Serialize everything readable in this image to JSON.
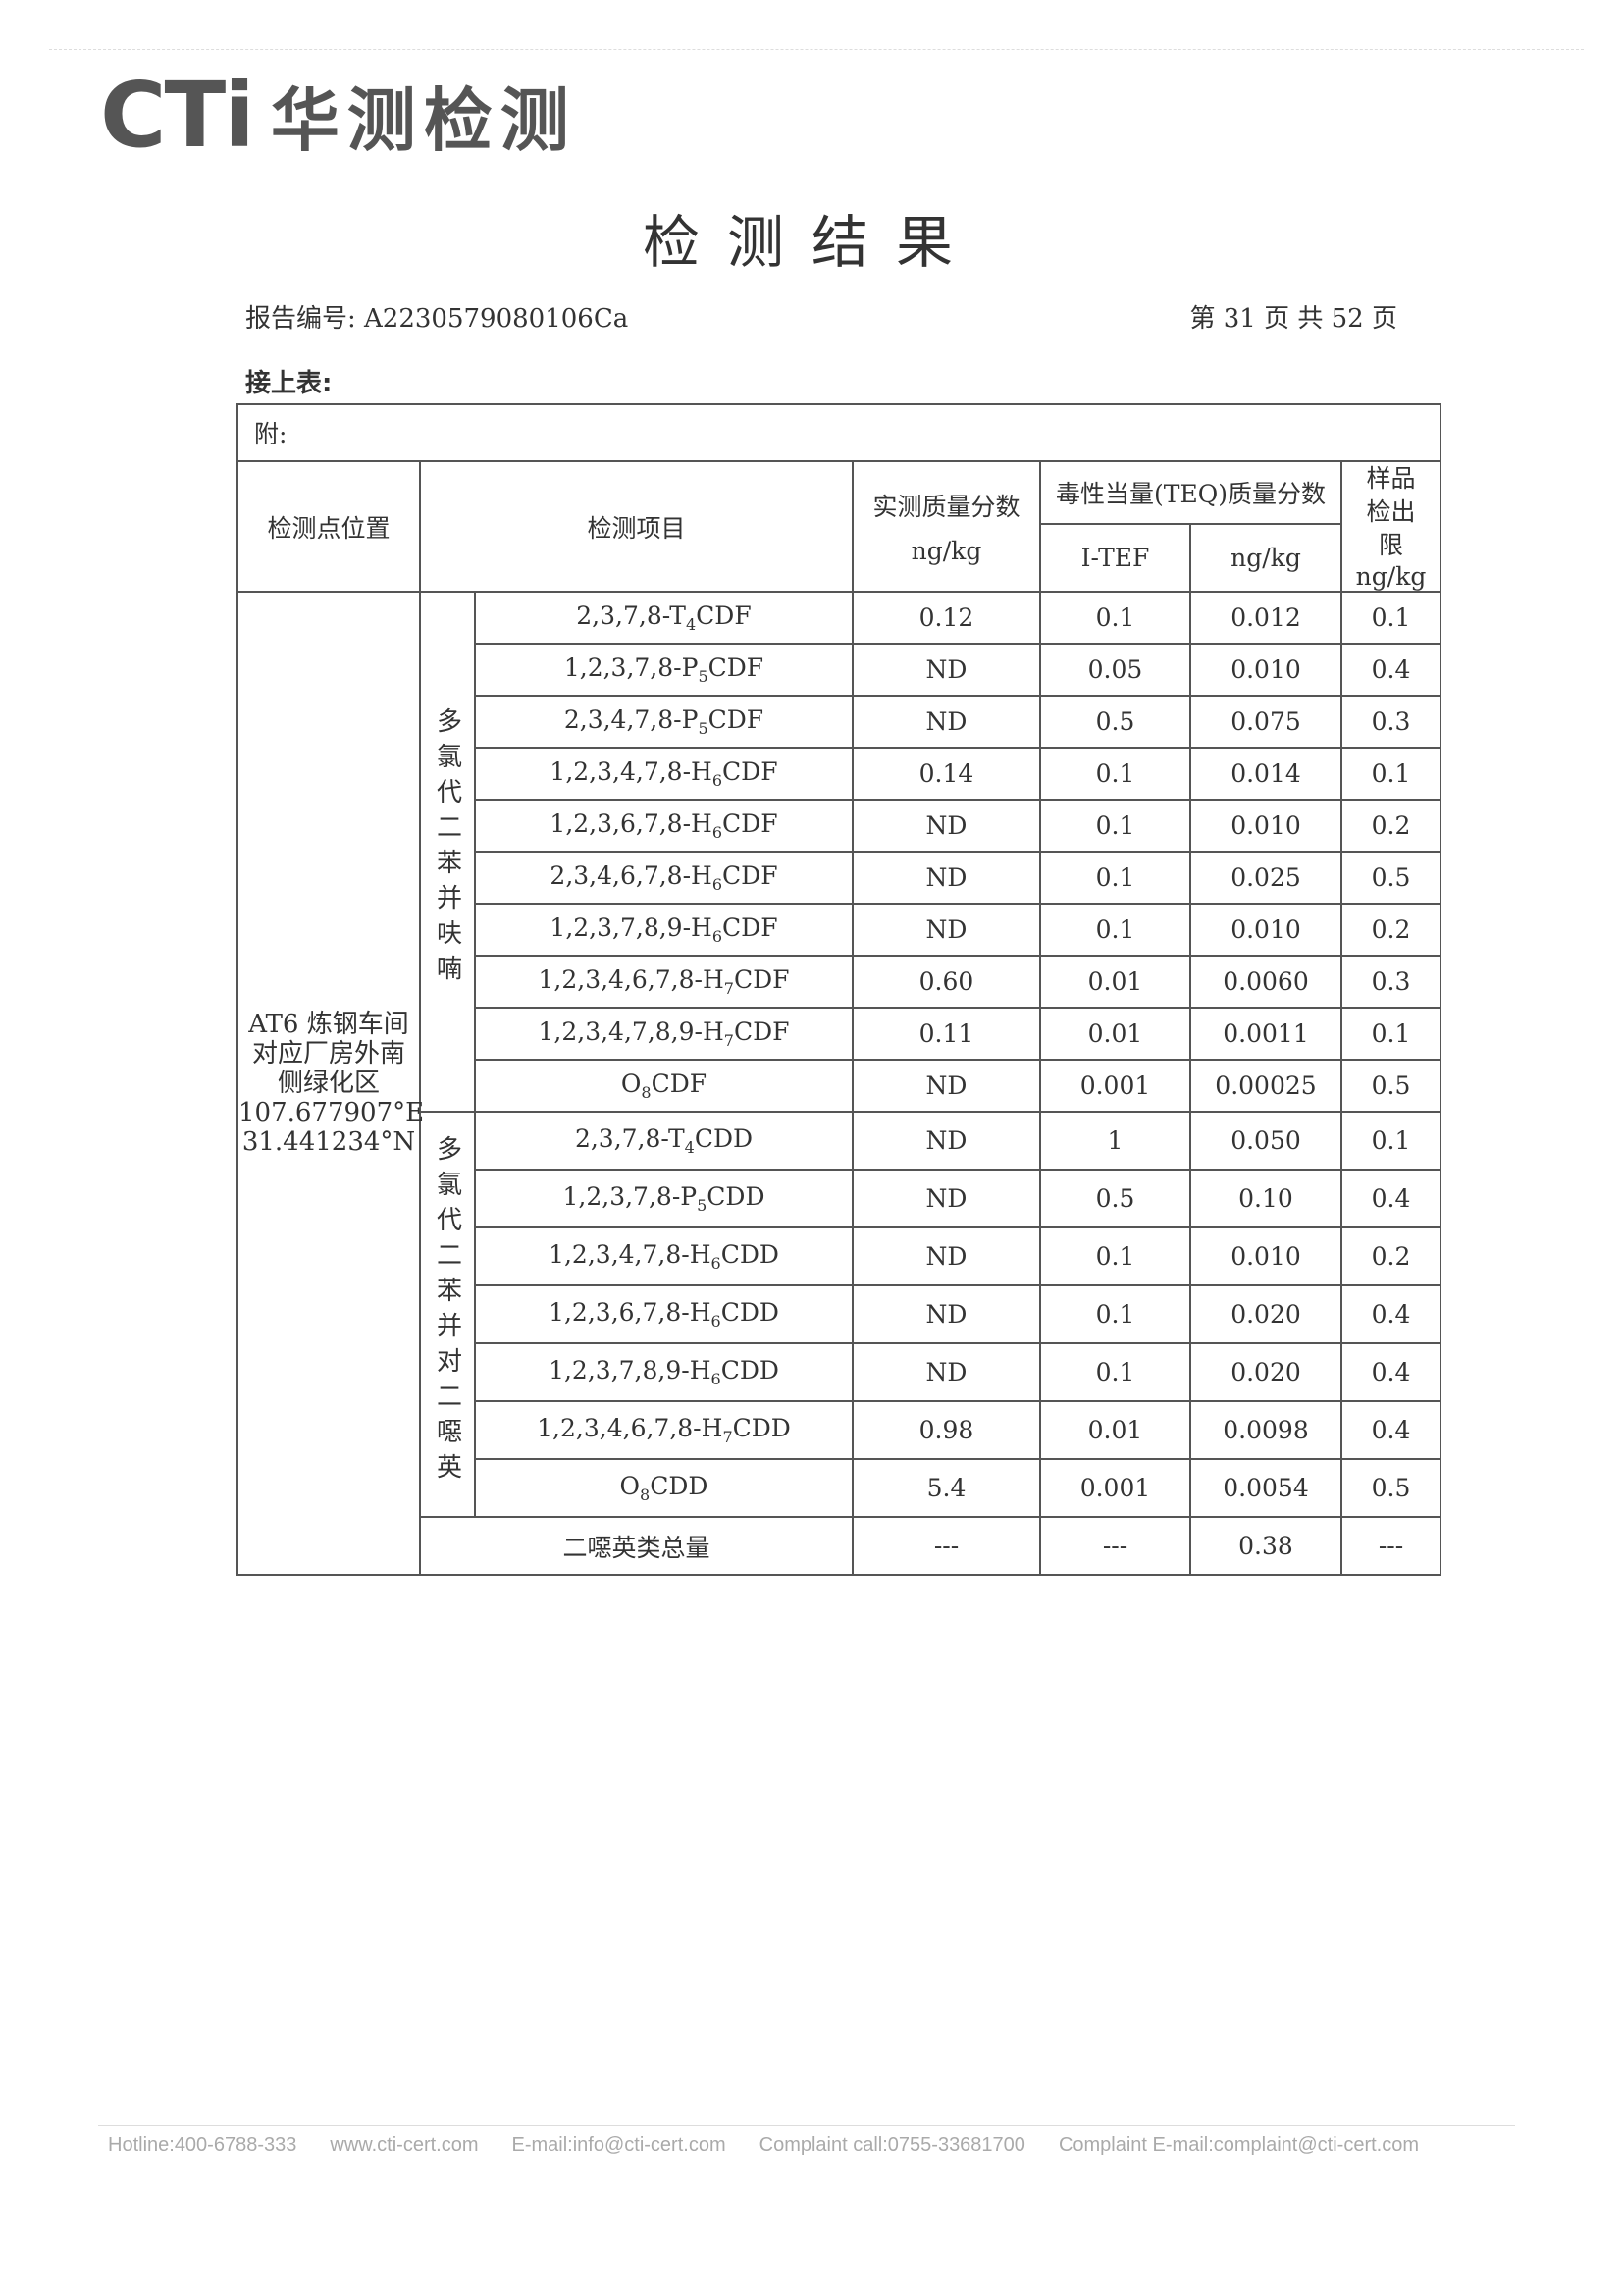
{
  "header": {
    "logo_text": "CTi 华测检测",
    "title": "检测结果",
    "report_no": "报告编号: A2230579080106Ca",
    "page_info": "第 31 页  共 52 页",
    "continued": "接上表:"
  },
  "table": {
    "note": "附:",
    "headers": {
      "location": "检测点位置",
      "item": "检测项目",
      "measured": "实测质量分数",
      "measured_unit": "ng/kg",
      "teq": "毒性当量(TEQ)质量分数",
      "itef": "I-TEF",
      "teq_unit": "ng/kg",
      "limit": "样品检出限",
      "limit_unit": "ng/kg"
    },
    "location": {
      "line1": "AT6 炼钢车间",
      "line2": "对应厂房外南",
      "line3": "侧绿化区",
      "lon": "107.677907°E",
      "lat": "31.441234°N"
    },
    "group_pcdf": "多氯代二苯并呋喃",
    "group_pcdd": "多氯代二苯并对二噁英",
    "pcdf_rows": [
      {
        "pre": "2,3,7,8-T",
        "sub": "4",
        "post": "CDF",
        "measured": "0.12",
        "itef": "0.1",
        "teq": "0.012",
        "limit": "0.1"
      },
      {
        "pre": "1,2,3,7,8-P",
        "sub": "5",
        "post": "CDF",
        "measured": "ND",
        "itef": "0.05",
        "teq": "0.010",
        "limit": "0.4"
      },
      {
        "pre": "2,3,4,7,8-P",
        "sub": "5",
        "post": "CDF",
        "measured": "ND",
        "itef": "0.5",
        "teq": "0.075",
        "limit": "0.3"
      },
      {
        "pre": "1,2,3,4,7,8-H",
        "sub": "6",
        "post": "CDF",
        "measured": "0.14",
        "itef": "0.1",
        "teq": "0.014",
        "limit": "0.1"
      },
      {
        "pre": "1,2,3,6,7,8-H",
        "sub": "6",
        "post": "CDF",
        "measured": "ND",
        "itef": "0.1",
        "teq": "0.010",
        "limit": "0.2"
      },
      {
        "pre": "2,3,4,6,7,8-H",
        "sub": "6",
        "post": "CDF",
        "measured": "ND",
        "itef": "0.1",
        "teq": "0.025",
        "limit": "0.5"
      },
      {
        "pre": "1,2,3,7,8,9-H",
        "sub": "6",
        "post": "CDF",
        "measured": "ND",
        "itef": "0.1",
        "teq": "0.010",
        "limit": "0.2"
      },
      {
        "pre": "1,2,3,4,6,7,8-H",
        "sub": "7",
        "post": "CDF",
        "measured": "0.60",
        "itef": "0.01",
        "teq": "0.0060",
        "limit": "0.3"
      },
      {
        "pre": "1,2,3,4,7,8,9-H",
        "sub": "7",
        "post": "CDF",
        "measured": "0.11",
        "itef": "0.01",
        "teq": "0.0011",
        "limit": "0.1"
      },
      {
        "pre": "O",
        "sub": "8",
        "post": "CDF",
        "measured": "ND",
        "itef": "0.001",
        "teq": "0.00025",
        "limit": "0.5"
      }
    ],
    "pcdd_rows": [
      {
        "pre": "2,3,7,8-T",
        "sub": "4",
        "post": "CDD",
        "measured": "ND",
        "itef": "1",
        "teq": "0.050",
        "limit": "0.1"
      },
      {
        "pre": "1,2,3,7,8-P",
        "sub": "5",
        "post": "CDD",
        "measured": "ND",
        "itef": "0.5",
        "teq": "0.10",
        "limit": "0.4"
      },
      {
        "pre": "1,2,3,4,7,8-H",
        "sub": "6",
        "post": "CDD",
        "measured": "ND",
        "itef": "0.1",
        "teq": "0.010",
        "limit": "0.2"
      },
      {
        "pre": "1,2,3,6,7,8-H",
        "sub": "6",
        "post": "CDD",
        "measured": "ND",
        "itef": "0.1",
        "teq": "0.020",
        "limit": "0.4"
      },
      {
        "pre": "1,2,3,7,8,9-H",
        "sub": "6",
        "post": "CDD",
        "measured": "ND",
        "itef": "0.1",
        "teq": "0.020",
        "limit": "0.4"
      },
      {
        "pre": "1,2,3,4,6,7,8-H",
        "sub": "7",
        "post": "CDD",
        "measured": "0.98",
        "itef": "0.01",
        "teq": "0.0098",
        "limit": "0.4"
      },
      {
        "pre": "O",
        "sub": "8",
        "post": "CDD",
        "measured": "5.4",
        "itef": "0.001",
        "teq": "0.0054",
        "limit": "0.5"
      }
    ],
    "total": {
      "label": "二噁英类总量",
      "measured": "---",
      "itef": "---",
      "teq": "0.38",
      "limit": "---"
    }
  },
  "footer": {
    "hotline": "Hotline:400-6788-333",
    "website": "www.cti-cert.com",
    "email": "E-mail:info@cti-cert.com",
    "complaint_call": "Complaint call:0755-33681700",
    "complaint_email": "Complaint E-mail:complaint@cti-cert.com"
  }
}
